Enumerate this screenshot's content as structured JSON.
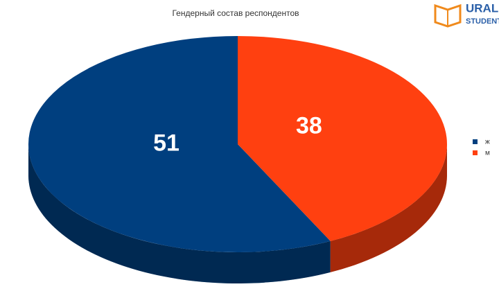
{
  "chart_data": {
    "type": "pie",
    "title": "Гендерный состав респондентов",
    "categories": [
      "ж",
      "м"
    ],
    "values": [
      51,
      38
    ],
    "colors": [
      "#003f7f",
      "#ff4010"
    ],
    "legend": "right",
    "three_d": true
  },
  "logo": {
    "line1": "URAL",
    "line2": "STUDENT"
  }
}
